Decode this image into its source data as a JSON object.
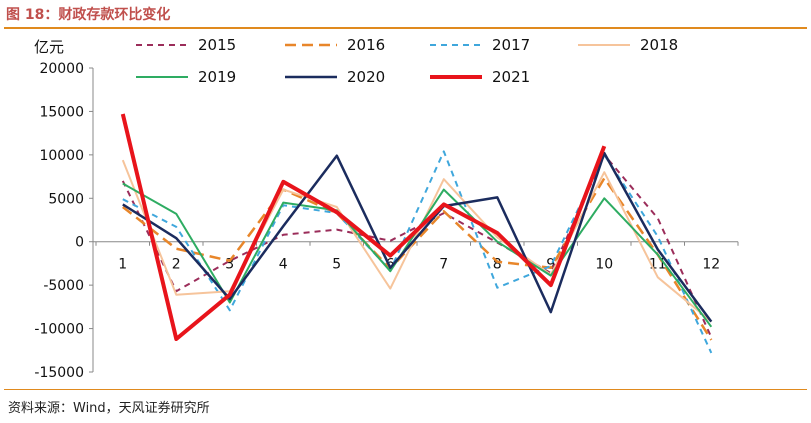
{
  "header": {
    "title": "图 18：财政存款环比变化"
  },
  "footer": {
    "source": "资料来源：Wind，天风证券研究所"
  },
  "chart_data": {
    "type": "line",
    "y_unit": "亿元",
    "x": [
      "1",
      "2",
      "3",
      "4",
      "5",
      "6",
      "7",
      "8",
      "9",
      "10",
      "11",
      "12"
    ],
    "ylim": [
      -15000,
      20000
    ],
    "yticks": [
      -15000,
      -10000,
      -5000,
      0,
      5000,
      10000,
      15000,
      20000
    ],
    "grid": false,
    "legend_position": "top",
    "series": [
      {
        "name": "2015",
        "color": "#9b2d5a",
        "dash": "6,5",
        "width": 2,
        "values": [
          7000,
          -5700,
          -2200,
          800,
          1400,
          100,
          3300,
          -100,
          -3600,
          10000,
          2700,
          -11000
        ]
      },
      {
        "name": "2016",
        "color": "#e8862a",
        "dash": "11,6",
        "width": 2.5,
        "values": [
          4000,
          -800,
          -2200,
          6000,
          3300,
          -3100,
          3500,
          -2300,
          -3000,
          7300,
          -1500,
          -11300
        ]
      },
      {
        "name": "2017",
        "color": "#3fa7dc",
        "dash": "6,5",
        "width": 2,
        "values": [
          4900,
          1700,
          -7900,
          4200,
          3300,
          -3300,
          10400,
          -5300,
          -2800,
          10000,
          600,
          -12800
        ]
      },
      {
        "name": "2018",
        "color": "#f6c49b",
        "dash": "",
        "width": 2,
        "values": [
          9400,
          -6100,
          -5700,
          6000,
          4000,
          -5400,
          7200,
          500,
          -3800,
          8000,
          -4100,
          -9200
        ]
      },
      {
        "name": "2019",
        "color": "#2eac62",
        "dash": "",
        "width": 2,
        "values": [
          6700,
          3200,
          -7000,
          4500,
          3600,
          -3400,
          6000,
          0,
          -3900,
          5000,
          -1500,
          -9800
        ]
      },
      {
        "name": "2020",
        "color": "#1b2c5e",
        "dash": "",
        "width": 2.5,
        "values": [
          4300,
          400,
          -6600,
          1800,
          9900,
          -3000,
          4100,
          5100,
          -8100,
          10200,
          -900,
          -9200
        ]
      },
      {
        "name": "2021",
        "color": "#e8141b",
        "dash": "",
        "width": 4,
        "values": [
          14700,
          -11200,
          -6100,
          6900,
          3400,
          -1600,
          4300,
          1000,
          -5000,
          11000,
          null,
          null
        ]
      }
    ]
  }
}
